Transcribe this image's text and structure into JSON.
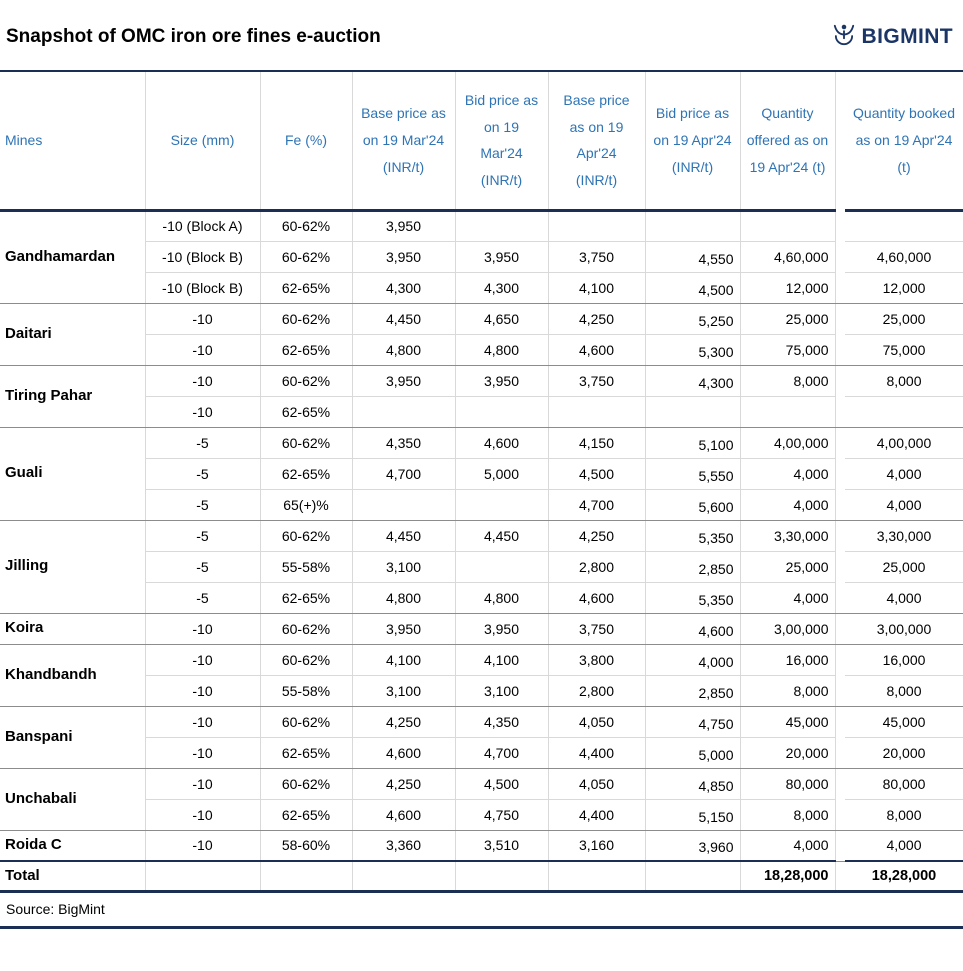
{
  "header": {
    "title": "Snapshot of OMC iron ore fines e-auction",
    "logo_text": "BIGMINT"
  },
  "footer": {
    "source": "Source: BigMint"
  },
  "colors": {
    "header_text_blue": "#2E74B5",
    "dark_rule_navy": "#1B2F55",
    "logo_navy": "#1B3566",
    "light_grid": "#D9D9D9",
    "group_separator": "#8C8C8C"
  },
  "chart_data": {
    "type": "table",
    "title": "Snapshot of OMC iron ore fines e-auction",
    "headers": [
      "Mines",
      "Size (mm)",
      "Fe (%)",
      "Base price as on 19 Mar'24 (INR/t)",
      "Bid price as on 19 Mar'24 (INR/t)",
      "Base price as on 19 Apr'24 (INR/t)",
      "Bid price as on 19 Apr'24 (INR/t)",
      "Quantity offered as on 19 Apr'24 (t)",
      "Quantity booked as on 19 Apr'24 (t)"
    ],
    "groups": [
      {
        "mine": "Gandhamardan",
        "rows": [
          [
            "-10 (Block A)",
            "60-62%",
            "3,950",
            "",
            "",
            "",
            "",
            ""
          ],
          [
            "-10 (Block B)",
            "60-62%",
            "3,950",
            "3,950",
            "3,750",
            "4,550",
            "4,60,000",
            "4,60,000"
          ],
          [
            "-10 (Block B)",
            "62-65%",
            "4,300",
            "4,300",
            "4,100",
            "4,500",
            "12,000",
            "12,000"
          ]
        ]
      },
      {
        "mine": "Daitari",
        "rows": [
          [
            "-10",
            "60-62%",
            "4,450",
            "4,650",
            "4,250",
            "5,250",
            "25,000",
            "25,000"
          ],
          [
            "-10",
            "62-65%",
            "4,800",
            "4,800",
            "4,600",
            "5,300",
            "75,000",
            "75,000"
          ]
        ]
      },
      {
        "mine": "Tiring Pahar",
        "rows": [
          [
            "-10",
            "60-62%",
            "3,950",
            "3,950",
            "3,750",
            "4,300",
            "8,000",
            "8,000"
          ],
          [
            "-10",
            "62-65%",
            "",
            "",
            "",
            "",
            "",
            ""
          ]
        ]
      },
      {
        "mine": "Guali",
        "rows": [
          [
            "-5",
            "60-62%",
            "4,350",
            "4,600",
            "4,150",
            "5,100",
            "4,00,000",
            "4,00,000"
          ],
          [
            "-5",
            "62-65%",
            "4,700",
            "5,000",
            "4,500",
            "5,550",
            "4,000",
            "4,000"
          ],
          [
            "-5",
            "65(+)%",
            "",
            "",
            "4,700",
            "5,600",
            "4,000",
            "4,000"
          ]
        ]
      },
      {
        "mine": "Jilling",
        "rows": [
          [
            "-5",
            "60-62%",
            "4,450",
            "4,450",
            "4,250",
            "5,350",
            "3,30,000",
            "3,30,000"
          ],
          [
            "-5",
            "55-58%",
            "3,100",
            "",
            "2,800",
            "2,850",
            "25,000",
            "25,000"
          ],
          [
            "-5",
            "62-65%",
            "4,800",
            "4,800",
            "4,600",
            "5,350",
            "4,000",
            "4,000"
          ]
        ]
      },
      {
        "mine": "Koira",
        "rows": [
          [
            "-10",
            "60-62%",
            "3,950",
            "3,950",
            "3,750",
            "4,600",
            "3,00,000",
            "3,00,000"
          ]
        ]
      },
      {
        "mine": "Khandbandh",
        "rows": [
          [
            "-10",
            "60-62%",
            "4,100",
            "4,100",
            "3,800",
            "4,000",
            "16,000",
            "16,000"
          ],
          [
            "-10",
            "55-58%",
            "3,100",
            "3,100",
            "2,800",
            "2,850",
            "8,000",
            "8,000"
          ]
        ]
      },
      {
        "mine": "Banspani",
        "rows": [
          [
            "-10",
            "60-62%",
            "4,250",
            "4,350",
            "4,050",
            "4,750",
            "45,000",
            "45,000"
          ],
          [
            "-10",
            "62-65%",
            "4,600",
            "4,700",
            "4,400",
            "5,000",
            "20,000",
            "20,000"
          ]
        ]
      },
      {
        "mine": "Unchabali",
        "rows": [
          [
            "-10",
            "60-62%",
            "4,250",
            "4,500",
            "4,050",
            "4,850",
            "80,000",
            "80,000"
          ],
          [
            "-10",
            "62-65%",
            "4,600",
            "4,750",
            "4,400",
            "5,150",
            "8,000",
            "8,000"
          ]
        ]
      },
      {
        "mine": "Roida C",
        "rows": [
          [
            "-10",
            "58-60%",
            "3,360",
            "3,510",
            "3,160",
            "3,960",
            "4,000",
            "4,000"
          ]
        ]
      }
    ],
    "total": {
      "label": "Total",
      "qty_offered": "18,28,000",
      "qty_booked": "18,28,000"
    }
  }
}
